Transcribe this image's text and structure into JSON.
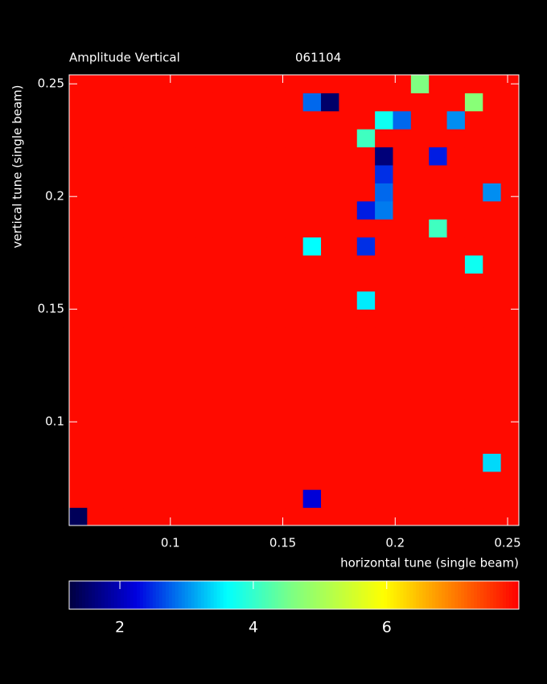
{
  "chart_data": {
    "type": "heatmap",
    "title": "Amplitude Vertical",
    "subtitle": "061104",
    "xlabel": "horizontal tune (single beam)",
    "ylabel": "vertical tune (single beam)",
    "colormap": "jet",
    "x": [
      0.059,
      0.067,
      0.075,
      0.083,
      0.091,
      0.099,
      0.107,
      0.115,
      0.123,
      0.131,
      0.139,
      0.147,
      0.155,
      0.163,
      0.171,
      0.179,
      0.187,
      0.195,
      0.203,
      0.211,
      0.219,
      0.227,
      0.235,
      0.243,
      0.251
    ],
    "y": [
      0.058,
      0.066,
      0.074,
      0.082,
      0.09,
      0.098,
      0.106,
      0.114,
      0.122,
      0.13,
      0.138,
      0.146,
      0.154,
      0.162,
      0.17,
      0.178,
      0.186,
      0.194,
      0.202,
      0.21,
      0.218,
      0.226,
      0.234,
      0.242,
      0.25
    ],
    "z": [
      [
        1.4,
        7.9,
        7.9,
        7.9,
        7.9,
        7.9,
        7.9,
        7.9,
        7.9,
        7.9,
        7.9,
        7.9,
        7.9,
        7.9,
        7.9,
        7.9,
        7.9,
        7.9,
        7.9,
        7.9,
        7.9,
        7.9,
        7.9,
        7.9,
        7.9
      ],
      [
        7.9,
        7.9,
        7.9,
        7.9,
        7.9,
        7.9,
        7.9,
        7.9,
        7.9,
        7.9,
        7.9,
        7.9,
        7.9,
        2.2,
        7.9,
        7.9,
        7.9,
        7.9,
        7.9,
        7.9,
        7.9,
        7.9,
        7.9,
        7.9,
        7.9
      ],
      [
        7.9,
        7.9,
        7.9,
        7.9,
        7.9,
        7.9,
        7.9,
        7.9,
        7.9,
        7.9,
        7.9,
        7.9,
        7.9,
        7.9,
        7.9,
        7.9,
        7.9,
        7.9,
        7.9,
        7.9,
        7.9,
        7.9,
        7.9,
        7.9,
        7.9
      ],
      [
        7.9,
        7.9,
        7.9,
        7.9,
        7.9,
        7.9,
        7.9,
        7.9,
        7.9,
        7.9,
        7.9,
        7.9,
        7.9,
        7.9,
        7.9,
        7.9,
        7.9,
        7.9,
        7.9,
        7.9,
        7.9,
        7.9,
        7.9,
        3.4,
        7.9
      ],
      [
        7.9,
        7.9,
        7.9,
        7.9,
        7.9,
        7.9,
        7.9,
        7.9,
        7.9,
        7.9,
        7.9,
        7.9,
        7.9,
        7.9,
        7.9,
        7.9,
        7.9,
        7.9,
        7.9,
        7.9,
        7.9,
        7.9,
        7.9,
        7.9,
        7.9
      ],
      [
        7.9,
        7.9,
        7.9,
        7.9,
        7.9,
        7.9,
        7.9,
        7.9,
        7.9,
        7.9,
        7.9,
        7.9,
        7.9,
        7.9,
        7.9,
        7.9,
        7.9,
        7.9,
        7.9,
        7.9,
        7.9,
        7.9,
        7.9,
        7.9,
        7.9
      ],
      [
        7.9,
        7.9,
        7.9,
        7.9,
        7.9,
        7.9,
        7.9,
        7.9,
        7.9,
        7.9,
        7.9,
        7.9,
        7.9,
        7.9,
        7.9,
        7.9,
        7.9,
        7.9,
        7.9,
        7.9,
        7.9,
        7.9,
        7.9,
        7.9,
        7.9
      ],
      [
        7.9,
        7.9,
        7.9,
        7.9,
        7.9,
        7.9,
        7.9,
        7.9,
        7.9,
        7.9,
        7.9,
        7.9,
        7.9,
        7.9,
        7.9,
        7.9,
        7.9,
        7.9,
        7.9,
        7.9,
        7.9,
        7.9,
        7.9,
        7.9,
        7.9
      ],
      [
        7.9,
        7.9,
        7.9,
        7.9,
        7.9,
        7.9,
        7.9,
        7.9,
        7.9,
        7.9,
        7.9,
        7.9,
        7.9,
        7.9,
        7.9,
        7.9,
        7.9,
        7.9,
        7.9,
        7.9,
        7.9,
        7.9,
        7.9,
        7.9,
        7.9
      ],
      [
        7.9,
        7.9,
        7.9,
        7.9,
        7.9,
        7.9,
        7.9,
        7.9,
        7.9,
        7.9,
        7.9,
        7.9,
        7.9,
        7.9,
        7.9,
        7.9,
        7.9,
        7.9,
        7.9,
        7.9,
        7.9,
        7.9,
        7.9,
        7.9,
        7.9
      ],
      [
        7.9,
        7.9,
        7.9,
        7.9,
        7.9,
        7.9,
        7.9,
        7.9,
        7.9,
        7.9,
        7.9,
        7.9,
        7.9,
        7.9,
        7.9,
        7.9,
        7.9,
        7.9,
        7.9,
        7.9,
        7.9,
        7.9,
        7.9,
        7.9,
        7.9
      ],
      [
        7.9,
        7.9,
        7.9,
        7.9,
        7.9,
        7.9,
        7.9,
        7.9,
        7.9,
        7.9,
        7.9,
        7.9,
        7.9,
        7.9,
        7.9,
        7.9,
        7.9,
        7.9,
        7.9,
        7.9,
        7.9,
        7.9,
        7.9,
        7.9,
        7.9
      ],
      [
        7.9,
        7.9,
        7.9,
        7.9,
        7.9,
        7.9,
        7.9,
        7.9,
        7.9,
        7.9,
        7.9,
        7.9,
        7.9,
        7.9,
        7.9,
        7.9,
        3.5,
        7.9,
        7.9,
        7.9,
        7.9,
        7.9,
        7.9,
        7.9,
        7.9
      ],
      [
        7.9,
        7.9,
        7.9,
        7.9,
        7.9,
        7.9,
        7.9,
        7.9,
        7.9,
        7.9,
        7.9,
        7.9,
        7.9,
        7.9,
        7.9,
        7.9,
        7.9,
        7.9,
        7.9,
        7.9,
        7.9,
        7.9,
        7.9,
        7.9,
        7.9
      ],
      [
        7.9,
        7.9,
        7.9,
        7.9,
        7.9,
        7.9,
        7.9,
        7.9,
        7.9,
        7.9,
        7.9,
        7.9,
        7.9,
        7.9,
        7.9,
        7.9,
        7.9,
        7.9,
        7.9,
        7.9,
        7.9,
        7.9,
        3.7,
        7.9,
        7.9
      ],
      [
        7.9,
        7.9,
        7.9,
        7.9,
        7.9,
        7.9,
        7.9,
        7.9,
        7.9,
        7.9,
        7.9,
        7.9,
        7.9,
        3.6,
        7.9,
        7.9,
        2.5,
        7.9,
        7.9,
        7.9,
        7.9,
        7.9,
        7.9,
        7.9,
        7.9
      ],
      [
        7.9,
        7.9,
        7.9,
        7.9,
        7.9,
        7.9,
        7.9,
        7.9,
        7.9,
        7.9,
        7.9,
        7.9,
        7.9,
        7.9,
        7.9,
        7.9,
        7.9,
        7.9,
        7.9,
        7.9,
        4.1,
        7.9,
        7.9,
        7.9,
        7.9
      ],
      [
        7.9,
        7.9,
        7.9,
        7.9,
        7.9,
        7.9,
        7.9,
        7.9,
        7.9,
        7.9,
        7.9,
        7.9,
        7.9,
        7.9,
        7.9,
        7.9,
        2.4,
        2.9,
        7.9,
        7.9,
        7.9,
        7.9,
        7.9,
        7.9,
        7.9
      ],
      [
        7.9,
        7.9,
        7.9,
        7.9,
        7.9,
        7.9,
        7.9,
        7.9,
        7.9,
        7.9,
        7.9,
        7.9,
        7.9,
        7.9,
        7.9,
        7.9,
        7.9,
        2.8,
        7.9,
        7.9,
        7.9,
        7.9,
        7.9,
        3.0,
        7.9
      ],
      [
        7.9,
        7.9,
        7.9,
        7.9,
        7.9,
        7.9,
        7.9,
        7.9,
        7.9,
        7.9,
        7.9,
        7.9,
        7.9,
        7.9,
        7.9,
        7.9,
        7.9,
        2.5,
        7.9,
        7.9,
        7.9,
        7.9,
        7.9,
        7.9,
        7.9
      ],
      [
        7.9,
        7.9,
        7.9,
        7.9,
        7.9,
        7.9,
        7.9,
        7.9,
        7.9,
        7.9,
        7.9,
        7.9,
        7.9,
        7.9,
        7.9,
        7.9,
        7.9,
        1.6,
        7.9,
        7.9,
        2.4,
        7.9,
        7.9,
        7.9,
        7.9
      ],
      [
        7.9,
        7.9,
        7.9,
        7.9,
        7.9,
        7.9,
        7.9,
        7.9,
        7.9,
        7.9,
        7.9,
        7.9,
        7.9,
        7.9,
        7.9,
        7.9,
        4.1,
        7.9,
        7.9,
        7.9,
        7.9,
        7.9,
        7.9,
        7.9,
        7.9
      ],
      [
        7.9,
        7.9,
        7.9,
        7.9,
        7.9,
        7.9,
        7.9,
        7.9,
        7.9,
        7.9,
        7.9,
        7.9,
        7.9,
        7.9,
        7.9,
        7.9,
        7.9,
        3.7,
        2.8,
        7.9,
        7.9,
        3.0,
        7.9,
        7.9,
        7.9
      ],
      [
        7.9,
        7.9,
        7.9,
        7.9,
        7.9,
        7.9,
        7.9,
        7.9,
        7.9,
        7.9,
        7.9,
        7.9,
        7.9,
        2.8,
        1.5,
        7.9,
        7.9,
        7.9,
        7.9,
        7.9,
        7.9,
        7.9,
        4.7,
        7.9,
        7.9
      ],
      [
        7.9,
        7.9,
        7.9,
        7.9,
        7.9,
        7.9,
        7.9,
        7.9,
        7.9,
        7.9,
        7.9,
        7.9,
        7.9,
        7.9,
        7.9,
        7.9,
        7.9,
        7.9,
        7.9,
        4.6,
        7.9,
        7.9,
        7.9,
        7.9,
        7.9
      ]
    ],
    "xlim": [
      0.055,
      0.255
    ],
    "ylim": [
      0.054,
      0.254
    ],
    "xticks": [
      0.1,
      0.15,
      0.2,
      0.25
    ],
    "yticks": [
      0.1,
      0.15,
      0.2,
      0.25
    ],
    "clim": [
      1.24,
      7.98
    ],
    "cticks": [
      2,
      4,
      6
    ]
  }
}
